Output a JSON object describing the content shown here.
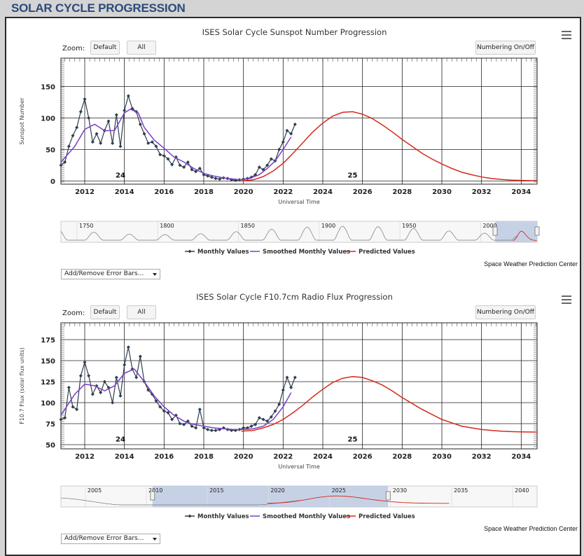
{
  "page": {
    "title": "SOLAR CYCLE PROGRESSION"
  },
  "charts": [
    {
      "title": "ISES Solar Cycle Sunspot Number Progression",
      "zoom_label": "Zoom:",
      "btn_default": "Default",
      "btn_all": "All",
      "btn_numbering": "Numbering On/Off",
      "credit": "Space Weather Prediction Center",
      "error_bars_label": "Add/Remove Error Bars...",
      "legend": {
        "monthly": "Monthly Values",
        "smoothed": "Smoothed Monthly Values",
        "predicted": "Predicted Values"
      },
      "colors": {
        "monthly": "#2d3e50",
        "smoothed": "#7b3fc4",
        "predicted": "#d42a1a",
        "navigator_band": "#b7c4e0"
      },
      "navigator_labels": [
        "1750",
        "1800",
        "1850",
        "1900",
        "1950",
        "2000"
      ]
    },
    {
      "title": "ISES Solar Cycle F10.7cm Radio Flux Progression",
      "zoom_label": "Zoom:",
      "btn_default": "Default",
      "btn_all": "All",
      "btn_numbering": "Numbering On/Off",
      "credit": "Space Weather Prediction Center",
      "error_bars_label": "Add/Remove Error Bars...",
      "legend": {
        "monthly": "Monthly Values",
        "smoothed": "Smoothed Monthly Values",
        "predicted": "Predicted Values"
      },
      "colors": {
        "monthly": "#2d3e50",
        "smoothed": "#7b3fc4",
        "predicted": "#d42a1a",
        "navigator_band": "#b7c4e0"
      },
      "navigator_labels": [
        "2005",
        "2010",
        "2015",
        "2020",
        "2025",
        "2030",
        "2035",
        "2040"
      ]
    }
  ],
  "chart_data": [
    {
      "type": "line",
      "title": "ISES Solar Cycle Sunspot Number Progression",
      "xlabel": "Universal Time",
      "ylabel": "Sunspot Number",
      "xlim": [
        2010.8,
        2034.8
      ],
      "ylim": [
        -5,
        195
      ],
      "xticks": [
        2012,
        2014,
        2016,
        2018,
        2020,
        2022,
        2024,
        2026,
        2028,
        2030,
        2032,
        2034
      ],
      "yticks": [
        0,
        50,
        100,
        150
      ],
      "cycle_labels": [
        {
          "text": "24",
          "x": 2013.8,
          "y": 10
        },
        {
          "text": "25",
          "x": 2025.5,
          "y": 10
        }
      ],
      "grid": true,
      "series": [
        {
          "name": "Monthly Values",
          "x": [
            2010.8,
            2011.0,
            2011.2,
            2011.4,
            2011.6,
            2011.8,
            2012.0,
            2012.2,
            2012.4,
            2012.6,
            2012.8,
            2013.0,
            2013.2,
            2013.4,
            2013.6,
            2013.8,
            2014.0,
            2014.2,
            2014.4,
            2014.6,
            2014.8,
            2015.0,
            2015.2,
            2015.4,
            2015.6,
            2015.8,
            2016.0,
            2016.2,
            2016.4,
            2016.6,
            2016.8,
            2017.0,
            2017.2,
            2017.4,
            2017.6,
            2017.8,
            2018.0,
            2018.2,
            2018.4,
            2018.6,
            2018.8,
            2019.0,
            2019.2,
            2019.4,
            2019.6,
            2019.8,
            2020.0,
            2020.2,
            2020.4,
            2020.6,
            2020.8,
            2021.0,
            2021.2,
            2021.4,
            2021.6,
            2021.8,
            2022.0,
            2022.2,
            2022.4,
            2022.6
          ],
          "values": [
            25,
            30,
            55,
            72,
            85,
            110,
            130,
            100,
            62,
            75,
            60,
            80,
            95,
            60,
            105,
            55,
            112,
            135,
            115,
            110,
            90,
            75,
            60,
            62,
            55,
            42,
            40,
            35,
            26,
            38,
            25,
            22,
            30,
            18,
            15,
            20,
            10,
            8,
            6,
            4,
            3,
            5,
            4,
            2,
            1,
            2,
            3,
            4,
            6,
            10,
            22,
            18,
            25,
            35,
            32,
            50,
            62,
            80,
            75,
            90
          ]
        },
        {
          "name": "Smoothed Monthly Values",
          "x": [
            2010.8,
            2011.5,
            2012.0,
            2012.5,
            2013.0,
            2013.5,
            2014.0,
            2014.3,
            2014.7,
            2015.0,
            2015.5,
            2016.0,
            2016.5,
            2017.0,
            2017.5,
            2018.0,
            2018.5,
            2019.0,
            2019.5,
            2019.9,
            2020.3,
            2020.8,
            2021.2,
            2021.6,
            2022.0,
            2022.4
          ],
          "values": [
            30,
            55,
            82,
            90,
            80,
            80,
            108,
            114,
            108,
            85,
            65,
            52,
            38,
            30,
            20,
            12,
            8,
            5,
            3,
            2,
            4,
            10,
            20,
            32,
            50,
            70
          ]
        },
        {
          "name": "Predicted Values",
          "x": [
            2019.9,
            2020.5,
            2021.0,
            2021.5,
            2022.0,
            2022.5,
            2023.0,
            2023.5,
            2024.0,
            2024.5,
            2025.0,
            2025.5,
            2026.0,
            2026.5,
            2027.0,
            2027.5,
            2028.0,
            2028.5,
            2029.0,
            2029.5,
            2030.0,
            2030.5,
            2031.0,
            2031.5,
            2032.0,
            2032.5,
            2033.0,
            2033.5,
            2034.0,
            2034.8
          ],
          "values": [
            0,
            2,
            7,
            16,
            28,
            44,
            61,
            78,
            92,
            103,
            109,
            110,
            106,
            99,
            89,
            78,
            66,
            55,
            44,
            35,
            27,
            20,
            14,
            10,
            6.5,
            4,
            2.5,
            1.5,
            1,
            0.3
          ]
        }
      ]
    },
    {
      "type": "line",
      "title": "ISES Solar Cycle F10.7cm Radio Flux Progression",
      "xlabel": "Universal Time",
      "ylabel": "F10.7 Flux (solar flux units)",
      "xlim": [
        2010.8,
        2034.8
      ],
      "ylim": [
        45,
        195
      ],
      "xticks": [
        2012,
        2014,
        2016,
        2018,
        2020,
        2022,
        2024,
        2026,
        2028,
        2030,
        2032,
        2034
      ],
      "yticks": [
        50,
        75,
        100,
        125,
        150,
        175
      ],
      "cycle_labels": [
        {
          "text": "24",
          "x": 2013.8,
          "y": 57
        },
        {
          "text": "25",
          "x": 2025.5,
          "y": 57
        }
      ],
      "grid": true,
      "series": [
        {
          "name": "Monthly Values",
          "x": [
            2010.8,
            2011.0,
            2011.2,
            2011.4,
            2011.6,
            2011.8,
            2012.0,
            2012.2,
            2012.4,
            2012.6,
            2012.8,
            2013.0,
            2013.2,
            2013.4,
            2013.6,
            2013.8,
            2014.0,
            2014.2,
            2014.4,
            2014.6,
            2014.8,
            2015.0,
            2015.2,
            2015.4,
            2015.6,
            2015.8,
            2016.0,
            2016.2,
            2016.4,
            2016.6,
            2016.8,
            2017.0,
            2017.2,
            2017.4,
            2017.6,
            2017.8,
            2018.0,
            2018.2,
            2018.4,
            2018.6,
            2018.8,
            2019.0,
            2019.2,
            2019.4,
            2019.6,
            2019.8,
            2020.0,
            2020.2,
            2020.4,
            2020.6,
            2020.8,
            2021.0,
            2021.2,
            2021.4,
            2021.6,
            2021.8,
            2022.0,
            2022.2,
            2022.4,
            2022.6
          ],
          "values": [
            80,
            82,
            118,
            95,
            92,
            132,
            148,
            132,
            110,
            120,
            112,
            125,
            118,
            100,
            130,
            108,
            145,
            166,
            140,
            130,
            155,
            125,
            115,
            110,
            102,
            95,
            90,
            88,
            80,
            85,
            75,
            74,
            78,
            72,
            70,
            92,
            70,
            68,
            67,
            67,
            68,
            70,
            68,
            67,
            67,
            68,
            70,
            70,
            72,
            74,
            82,
            80,
            78,
            83,
            90,
            98,
            115,
            130,
            118,
            130
          ]
        },
        {
          "name": "Smoothed Monthly Values",
          "x": [
            2010.8,
            2011.5,
            2012.0,
            2012.5,
            2013.0,
            2013.5,
            2014.0,
            2014.5,
            2015.0,
            2015.5,
            2016.0,
            2016.5,
            2017.0,
            2017.5,
            2018.0,
            2018.5,
            2019.0,
            2019.5,
            2020.0,
            2020.5,
            2021.0,
            2021.5,
            2022.0,
            2022.4
          ],
          "values": [
            85,
            110,
            122,
            120,
            114,
            120,
            135,
            140,
            125,
            108,
            95,
            85,
            78,
            74,
            72,
            70,
            69,
            68,
            68,
            69,
            72,
            80,
            95,
            112
          ]
        },
        {
          "name": "Predicted Values",
          "x": [
            2019.9,
            2020.5,
            2021.0,
            2021.5,
            2022.0,
            2022.5,
            2023.0,
            2023.5,
            2024.0,
            2024.5,
            2025.0,
            2025.5,
            2026.0,
            2026.5,
            2027.0,
            2027.5,
            2028.0,
            2028.5,
            2029.0,
            2029.5,
            2030.0,
            2030.5,
            2031.0,
            2031.5,
            2032.0,
            2032.5,
            2033.0,
            2033.5,
            2034.0,
            2034.8
          ],
          "values": [
            66,
            67,
            70,
            74,
            80,
            88,
            97,
            107,
            116,
            124,
            129,
            131,
            130,
            126,
            121,
            114,
            106,
            99,
            92,
            86,
            80,
            76,
            72,
            70,
            68,
            67,
            66,
            65.5,
            65.2,
            65
          ]
        }
      ]
    }
  ]
}
